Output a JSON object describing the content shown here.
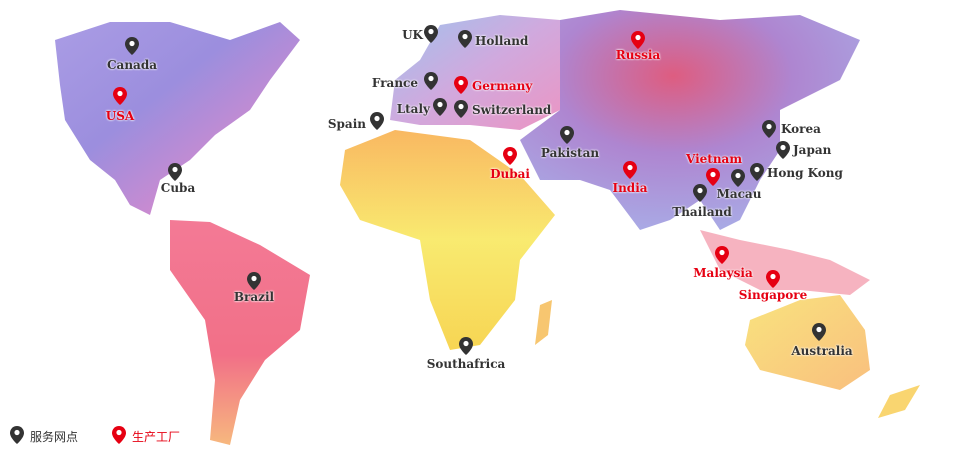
{
  "colors": {
    "service": "#333333",
    "factory": "#e60012"
  },
  "legend": [
    {
      "label": "服务网点",
      "type": "service",
      "icon": "map-pin-icon"
    },
    {
      "label": "生产工厂",
      "type": "factory",
      "icon": "map-pin-icon"
    }
  ],
  "locations": [
    {
      "name": "Canada",
      "type": "service"
    },
    {
      "name": "USA",
      "type": "factory"
    },
    {
      "name": "Cuba",
      "type": "service"
    },
    {
      "name": "Brazil",
      "type": "service"
    },
    {
      "name": "UK",
      "type": "service"
    },
    {
      "name": "Holland",
      "type": "service"
    },
    {
      "name": "France",
      "type": "service"
    },
    {
      "name": "Germany",
      "type": "factory"
    },
    {
      "name": "Ltaly",
      "type": "service"
    },
    {
      "name": "Switzerland",
      "type": "service"
    },
    {
      "name": "Spain",
      "type": "service"
    },
    {
      "name": "Pakistan",
      "type": "service"
    },
    {
      "name": "Dubai",
      "type": "factory"
    },
    {
      "name": "India",
      "type": "factory"
    },
    {
      "name": "Russia",
      "type": "factory"
    },
    {
      "name": "Vietnam",
      "type": "factory"
    },
    {
      "name": "Thailand",
      "type": "service"
    },
    {
      "name": "Macau",
      "type": "service"
    },
    {
      "name": "Hong Kong",
      "type": "service"
    },
    {
      "name": "Korea",
      "type": "service"
    },
    {
      "name": "Japan",
      "type": "service"
    },
    {
      "name": "Malaysia",
      "type": "factory"
    },
    {
      "name": "Singapore",
      "type": "factory"
    },
    {
      "name": "Australia",
      "type": "service"
    },
    {
      "name": "Southafrica",
      "type": "service"
    }
  ]
}
